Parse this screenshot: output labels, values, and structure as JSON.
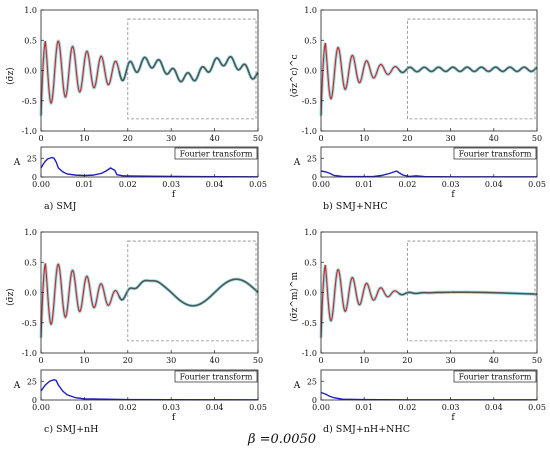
{
  "figure": {
    "beta_label": "β =0.0050"
  },
  "colors": {
    "signal": "#d62728",
    "smooth": "#555555",
    "envelope": "#17becf",
    "spectrum": "#1f1fbf"
  },
  "chart_data": [
    {
      "panel": "a",
      "caption": "a) SMJ",
      "ylabel_top": "⟨σ̄z⟩",
      "type": "line",
      "time": {
        "xlim": [
          0,
          50
        ],
        "ylim": [
          -1,
          1
        ],
        "xticks": [
          0,
          10,
          20,
          30,
          40,
          50
        ],
        "yticks": [
          -1.0,
          -0.5,
          0.0,
          0.5,
          1.0
        ],
        "fast": {
          "amp": 0.62,
          "decay": 0.06,
          "period": 3.3,
          "fade": 20
        },
        "slow": {
          "base": 0.02,
          "amp": 0.14,
          "period": 18,
          "wiggle": 0.08
        },
        "zoom_box": {
          "x": [
            20,
            50
          ],
          "y": [
            -0.8,
            0.85
          ]
        }
      },
      "spectrum": {
        "xlim": [
          0,
          0.05
        ],
        "ylim": [
          0,
          40
        ],
        "xticks": [
          0.0,
          0.01,
          0.02,
          0.03,
          0.04,
          0.05
        ],
        "yticks": [
          0,
          25
        ],
        "xlabel": "f",
        "ylabel": "A",
        "legend": "Fourier transform",
        "points": [
          [
            0,
            12
          ],
          [
            0.0005,
            17
          ],
          [
            0.001,
            21
          ],
          [
            0.0015,
            24
          ],
          [
            0.002,
            25
          ],
          [
            0.0025,
            26
          ],
          [
            0.003,
            25
          ],
          [
            0.0035,
            20
          ],
          [
            0.004,
            12
          ],
          [
            0.005,
            7
          ],
          [
            0.006,
            4
          ],
          [
            0.008,
            2.5
          ],
          [
            0.01,
            2
          ],
          [
            0.012,
            2.5
          ],
          [
            0.014,
            5
          ],
          [
            0.015,
            8
          ],
          [
            0.016,
            12
          ],
          [
            0.017,
            9
          ],
          [
            0.0175,
            3
          ],
          [
            0.019,
            1.5
          ],
          [
            0.025,
            1
          ],
          [
            0.035,
            0.5
          ],
          [
            0.05,
            0.2
          ]
        ]
      }
    },
    {
      "panel": "b",
      "caption": "b) SMJ+NHC",
      "ylabel_top": "⟨σ̄z^c⟩^c",
      "type": "line",
      "time": {
        "xlim": [
          0,
          50
        ],
        "ylim": [
          -1,
          1
        ],
        "xticks": [
          0,
          10,
          20,
          30,
          40,
          50
        ],
        "yticks": [
          -1.0,
          -0.5,
          0.0,
          0.5,
          1.0
        ],
        "fast": {
          "amp": 0.62,
          "decay": 0.12,
          "period": 3.3,
          "fade": 17
        },
        "slow": {
          "base": 0.02,
          "amp": 0.0,
          "period": 18,
          "wiggle": 0.035
        },
        "zoom_box": {
          "x": [
            20,
            50
          ],
          "y": [
            -0.8,
            0.85
          ]
        }
      },
      "spectrum": {
        "xlim": [
          0,
          0.05
        ],
        "ylim": [
          0,
          40
        ],
        "xticks": [
          0.0,
          0.01,
          0.02,
          0.03,
          0.04,
          0.05
        ],
        "yticks": [
          0,
          25
        ],
        "xlabel": "f",
        "ylabel": "A",
        "legend": "Fourier transform",
        "points": [
          [
            0,
            8
          ],
          [
            0.001,
            7
          ],
          [
            0.002,
            5
          ],
          [
            0.003,
            2
          ],
          [
            0.005,
            0.8
          ],
          [
            0.008,
            0.5
          ],
          [
            0.012,
            0.5
          ],
          [
            0.014,
            2
          ],
          [
            0.016,
            5
          ],
          [
            0.0175,
            8
          ],
          [
            0.018,
            6
          ],
          [
            0.019,
            2.5
          ],
          [
            0.0205,
            0.8
          ],
          [
            0.022,
            1.5
          ],
          [
            0.024,
            0.5
          ],
          [
            0.03,
            0.3
          ],
          [
            0.05,
            0.2
          ]
        ]
      }
    },
    {
      "panel": "c",
      "caption": "c) SMJ+nH",
      "ylabel_top": "⟨σ̄z⟩",
      "type": "line",
      "time": {
        "xlim": [
          0,
          50
        ],
        "ylim": [
          -1,
          1
        ],
        "xticks": [
          0,
          10,
          20,
          30,
          40,
          50
        ],
        "yticks": [
          -1.0,
          -0.5,
          0.0,
          0.5,
          1.0
        ],
        "fast": {
          "amp": 0.62,
          "decay": 0.07,
          "period": 3.3,
          "fade": 18
        },
        "slow": {
          "base": 0.0,
          "amp": 0.22,
          "period": 20,
          "wiggle": 0.0
        },
        "zoom_box": {
          "x": [
            20,
            50
          ],
          "y": [
            -0.8,
            0.85
          ]
        }
      },
      "spectrum": {
        "xlim": [
          0,
          0.05
        ],
        "ylim": [
          0,
          40
        ],
        "xticks": [
          0.0,
          0.01,
          0.02,
          0.03,
          0.04,
          0.05
        ],
        "yticks": [
          0,
          25
        ],
        "xlabel": "f",
        "ylabel": "A",
        "legend": "Fourier transform",
        "points": [
          [
            0,
            12
          ],
          [
            0.001,
            20
          ],
          [
            0.002,
            25
          ],
          [
            0.003,
            27
          ],
          [
            0.0035,
            26
          ],
          [
            0.004,
            20
          ],
          [
            0.005,
            12
          ],
          [
            0.006,
            7
          ],
          [
            0.008,
            3
          ],
          [
            0.01,
            1.5
          ],
          [
            0.015,
            1
          ],
          [
            0.02,
            0.6
          ],
          [
            0.03,
            0.4
          ],
          [
            0.05,
            0.2
          ]
        ]
      }
    },
    {
      "panel": "d",
      "caption": "d) SMJ+nH+NHC",
      "ylabel_top": "⟨σ̄z^m⟩^m",
      "type": "line",
      "time": {
        "xlim": [
          0,
          50
        ],
        "ylim": [
          -1,
          1
        ],
        "xticks": [
          0,
          10,
          20,
          30,
          40,
          50
        ],
        "yticks": [
          -1.0,
          -0.5,
          0.0,
          0.5,
          1.0
        ],
        "fast": {
          "amp": 0.62,
          "decay": 0.12,
          "period": 3.3,
          "fade": 17
        },
        "slow": {
          "base": -0.015,
          "amp": 0.02,
          "period": 50,
          "wiggle": 0.0
        },
        "zoom_box": {
          "x": [
            20,
            50
          ],
          "y": [
            -0.8,
            0.85
          ]
        }
      },
      "spectrum": {
        "xlim": [
          0,
          0.05
        ],
        "ylim": [
          0,
          40
        ],
        "xticks": [
          0.0,
          0.01,
          0.02,
          0.03,
          0.04,
          0.05
        ],
        "yticks": [
          0,
          25
        ],
        "xlabel": "f",
        "ylabel": "A",
        "legend": "Fourier transform",
        "points": [
          [
            0,
            10
          ],
          [
            0.001,
            8
          ],
          [
            0.002,
            5
          ],
          [
            0.003,
            3
          ],
          [
            0.005,
            1
          ],
          [
            0.01,
            0.5
          ],
          [
            0.02,
            0.3
          ],
          [
            0.05,
            0.2
          ]
        ]
      }
    }
  ]
}
